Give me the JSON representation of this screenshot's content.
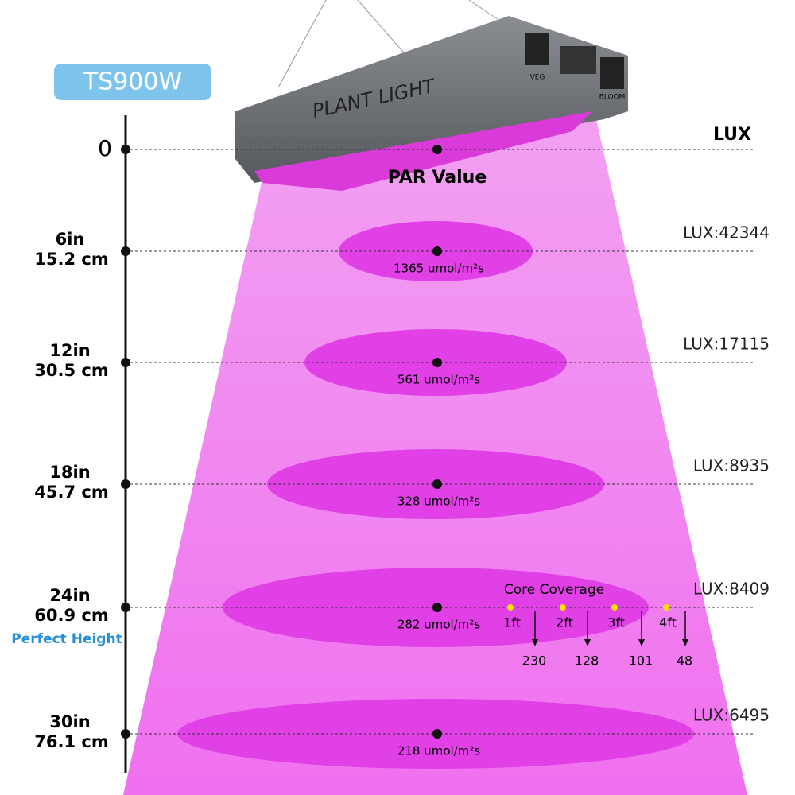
{
  "badge": "TS900W",
  "lux_header": "LUX",
  "par_header": "PAR Value",
  "lamp": {
    "label": "PLANT LIGHT",
    "switches": [
      "VEG",
      "BLOOM"
    ]
  },
  "levels": [
    {
      "height": "0"
    },
    {
      "height": "6in",
      "height_cm": "15.2 cm",
      "par": "1365 umol/m²s",
      "lux": "LUX:42344"
    },
    {
      "height": "12in",
      "height_cm": "30.5 cm",
      "par": "561 umol/m²s",
      "lux": "LUX:17115"
    },
    {
      "height": "18in",
      "height_cm": "45.7 cm",
      "par": "328 umol/m²s",
      "lux": "LUX:8935"
    },
    {
      "height": "24in",
      "height_cm": "60.9 cm",
      "par": "282 umol/m²s",
      "lux": "LUX:8409"
    },
    {
      "height": "30in",
      "height_cm": "76.1 cm",
      "par": "218 umol/m²s",
      "lux": "LUX:6495"
    }
  ],
  "perfect_height": "Perfect Height",
  "core_coverage": {
    "title": "Core Coverage",
    "distances": [
      "1ft",
      "2ft",
      "3ft",
      "4ft"
    ],
    "values": [
      "230",
      "128",
      "101",
      "48"
    ]
  }
}
